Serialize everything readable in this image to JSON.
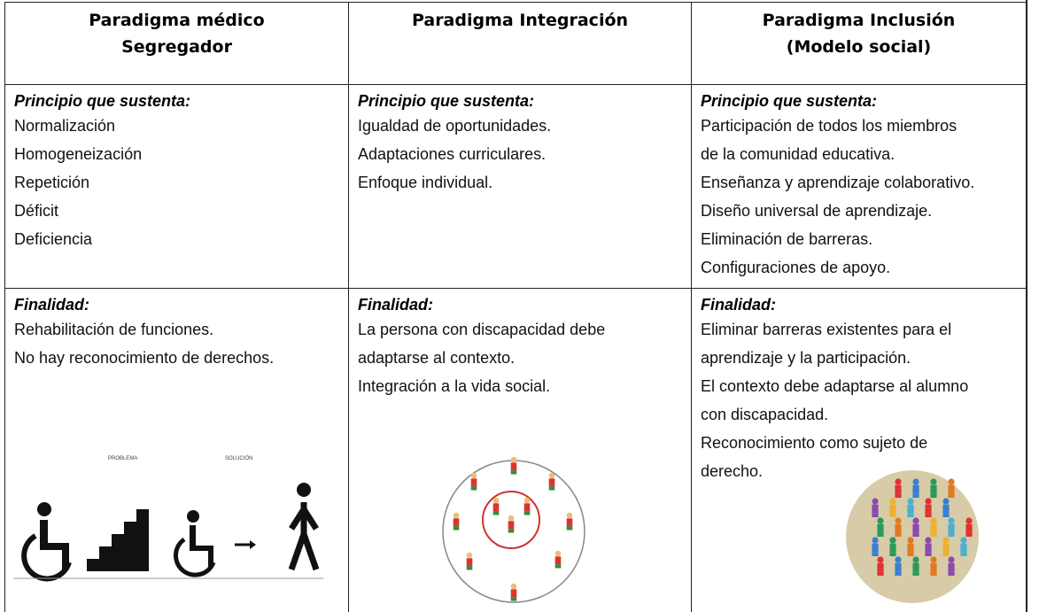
{
  "table": {
    "header": [
      [
        "Paradigma médico",
        "Segregador"
      ],
      [
        "Paradigma Integración"
      ],
      [
        "Paradigma Inclusión",
        "(Modelo social)"
      ]
    ],
    "rows": [
      [
        {
          "label": "Principio que sustenta:",
          "lines": [
            "Normalización",
            "Homogeneización",
            "Repetición",
            "Déficit",
            "Deficiencia"
          ]
        },
        {
          "label": "Principio que sustenta:",
          "lines": [
            "Igualdad de oportunidades.",
            "Adaptaciones curriculares.",
            "Enfoque individual."
          ]
        },
        {
          "label": "Principio que sustenta:",
          "lines": [
            "Participación de todos los miembros",
            "de la comunidad educativa.",
            "Enseñanza y aprendizaje colaborativo.",
            "Diseño universal de aprendizaje.",
            "Eliminación de barreras.",
            "Configuraciones de apoyo."
          ]
        }
      ],
      [
        {
          "label": "Finalidad:",
          "lines": [
            "Rehabilitación de funciones.",
            "No hay reconocimiento de derechos."
          ]
        },
        {
          "label": "Finalidad:",
          "lines": [
            "La persona con discapacidad debe",
            "adaptarse al contexto.",
            "Integración a la vida social."
          ]
        },
        {
          "label": "Finalidad:",
          "lines": [
            "Eliminar barreras existentes para el",
            "aprendizaje y la participación.",
            "El contexto debe adaptarse al alumno",
            "con discapacidad.",
            "Reconocimiento como sujeto de",
            "derecho."
          ]
        }
      ]
    ],
    "image_labels": [
      "PROBLEMA",
      "SOLUCIÓN"
    ]
  }
}
